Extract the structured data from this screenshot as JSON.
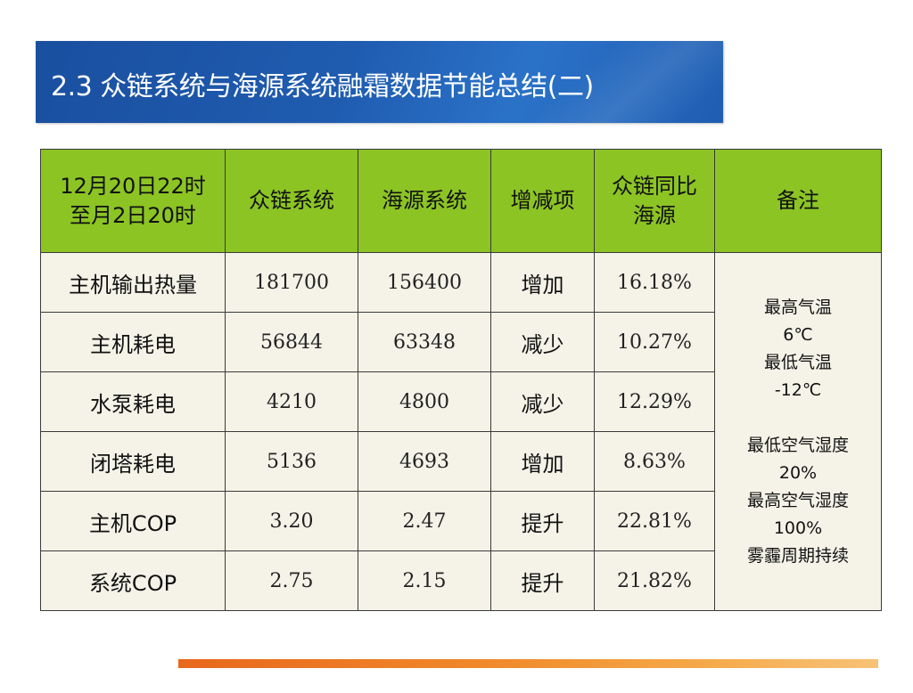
{
  "title": "2.3 众链系统与海源系统融霜数据节能总结(二)",
  "table": {
    "headers": {
      "period_line1": "12月20日22时",
      "period_line2": "至月2日20时",
      "col2": "众链系统",
      "col3": "海源系统",
      "col4": "增减项",
      "col5_line1": "众链同比",
      "col5_line2": "海源",
      "col6": "备注"
    },
    "rows": [
      {
        "label": "主机输出热量",
        "zhonglian": "181700",
        "haiyuan": "156400",
        "change": "增加",
        "ratio": "16.18%"
      },
      {
        "label": "主机耗电",
        "zhonglian": "56844",
        "haiyuan": "63348",
        "change": "减少",
        "ratio": "10.27%"
      },
      {
        "label": "水泵耗电",
        "zhonglian": "4210",
        "haiyuan": "4800",
        "change": "减少",
        "ratio": "12.29%"
      },
      {
        "label": "闭塔耗电",
        "zhonglian": "5136",
        "haiyuan": "4693",
        "change": "增加",
        "ratio": "8.63%"
      },
      {
        "label": "主机COP",
        "zhonglian": "3.20",
        "haiyuan": "2.47",
        "change": "提升",
        "ratio": "22.81%"
      },
      {
        "label": "系统COP",
        "zhonglian": "2.75",
        "haiyuan": "2.15",
        "change": "提升",
        "ratio": "21.82%"
      }
    ],
    "notes": [
      "最高气温",
      "6℃",
      "最低气温",
      "-12℃",
      "",
      "最低空气湿度",
      "20%",
      "最高空气湿度",
      "100%",
      "雾霾周期持续"
    ]
  },
  "colors": {
    "title_bar": "#1f5cb0",
    "header_bg": "#8cc424",
    "cell_bg": "#f5f3e8",
    "footer_bar": "#f08a2a"
  }
}
